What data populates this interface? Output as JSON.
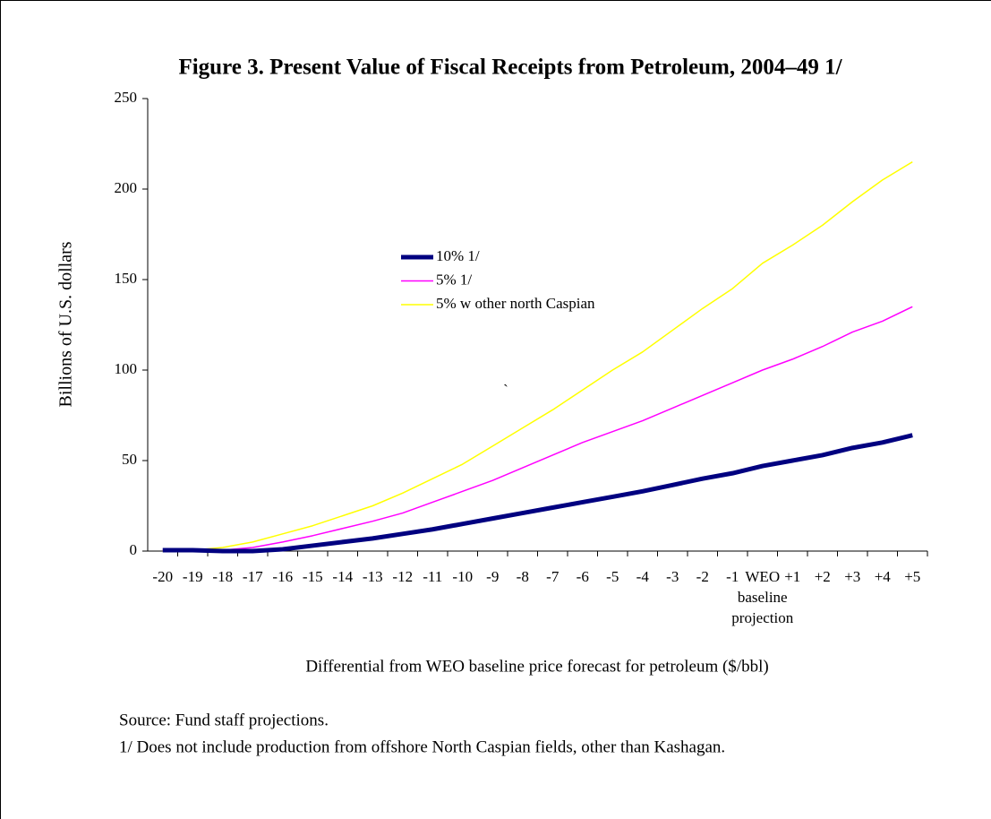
{
  "chart_data": {
    "type": "line",
    "title": "Figure 3. Present Value of Fiscal Receipts from Petroleum, 2004–49 1/",
    "y_label": "Billions of U.S. dollars",
    "x_label": "Differential from WEO baseline price forecast for petroleum ($/bbl)",
    "categories": [
      "-20",
      "-19",
      "-18",
      "-17",
      "-16",
      "-15",
      "-14",
      "-13",
      "-12",
      "-11",
      "-10",
      "-9",
      "-8",
      "-7",
      "-6",
      "-5",
      "-4",
      "-3",
      "-2",
      "-1",
      "WEO baseline projection",
      "+1",
      "+2",
      "+3",
      "+4",
      "+5"
    ],
    "series": [
      {
        "name": "10% 1/",
        "color": "#000080",
        "width": 5,
        "values": [
          0.5,
          0.5,
          0,
          0,
          1,
          3,
          5,
          7,
          9.5,
          12,
          15,
          18,
          21,
          24,
          27,
          30,
          33,
          36.5,
          40,
          43,
          47,
          50,
          53,
          57,
          60,
          64
        ]
      },
      {
        "name": "5% 1/",
        "color": "#ff00ff",
        "width": 1.5,
        "values": [
          0.5,
          0,
          0.5,
          2,
          5,
          8.5,
          12.5,
          16.5,
          21,
          27,
          33,
          39,
          46,
          53,
          60,
          66,
          72,
          79,
          86,
          93,
          100,
          106,
          113,
          121,
          127,
          135
        ]
      },
      {
        "name": "5% w other north Caspian",
        "color": "#ffff00",
        "width": 1.5,
        "values": [
          0,
          0.5,
          2,
          5,
          9.5,
          14,
          19.5,
          25,
          32,
          40,
          48,
          58,
          68,
          78,
          89,
          100,
          110,
          122,
          134,
          145,
          159,
          169,
          180,
          193,
          205,
          215
        ]
      }
    ],
    "ylim": [
      0,
      250
    ],
    "yticks": [
      0,
      50,
      100,
      150,
      200,
      250
    ],
    "annotation": "`",
    "notes": [
      "Source: Fund staff projections.",
      "1/ Does not include production from offshore North Caspian fields, other than Kashagan."
    ]
  }
}
